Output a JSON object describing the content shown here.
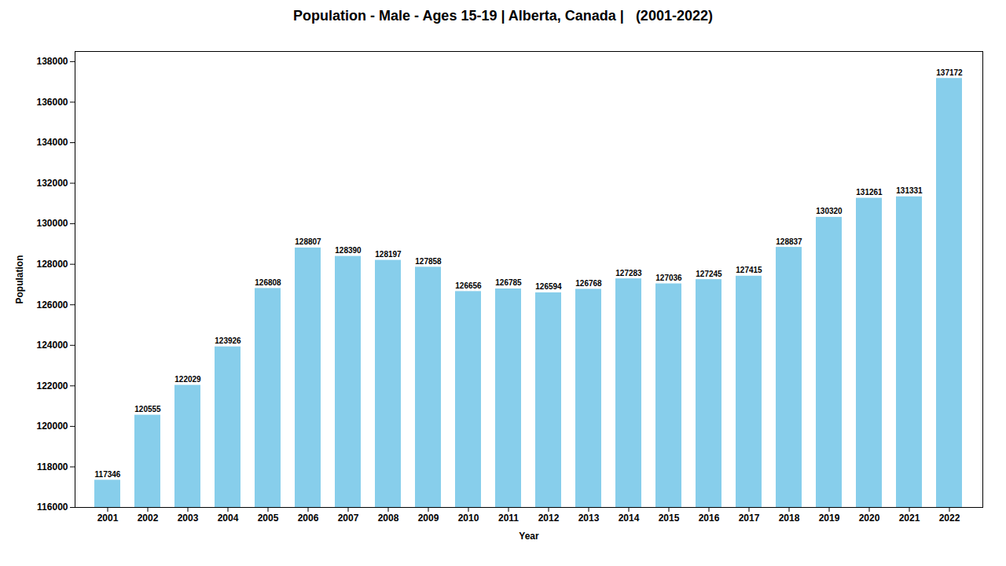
{
  "chart_data": {
    "type": "bar",
    "title": "Population - Male - Ages 15-19 | Alberta, Canada |   (2001-2022)",
    "xlabel": "Year",
    "ylabel": "Population",
    "categories": [
      "2001",
      "2002",
      "2003",
      "2004",
      "2005",
      "2006",
      "2007",
      "2008",
      "2009",
      "2010",
      "2011",
      "2012",
      "2013",
      "2014",
      "2015",
      "2016",
      "2017",
      "2018",
      "2019",
      "2020",
      "2021",
      "2022"
    ],
    "values": [
      117346,
      120555,
      122029,
      123926,
      126808,
      128807,
      128390,
      128197,
      127858,
      126656,
      126785,
      126594,
      126768,
      127283,
      127036,
      127245,
      127415,
      128837,
      130320,
      131261,
      131331,
      137172
    ],
    "color": "#87CEEB",
    "ylim": [
      116000,
      138500
    ],
    "yticks": [
      116000,
      118000,
      120000,
      122000,
      124000,
      126000,
      128000,
      130000,
      132000,
      134000,
      136000,
      138000
    ],
    "grid": false,
    "data_labels": true
  }
}
